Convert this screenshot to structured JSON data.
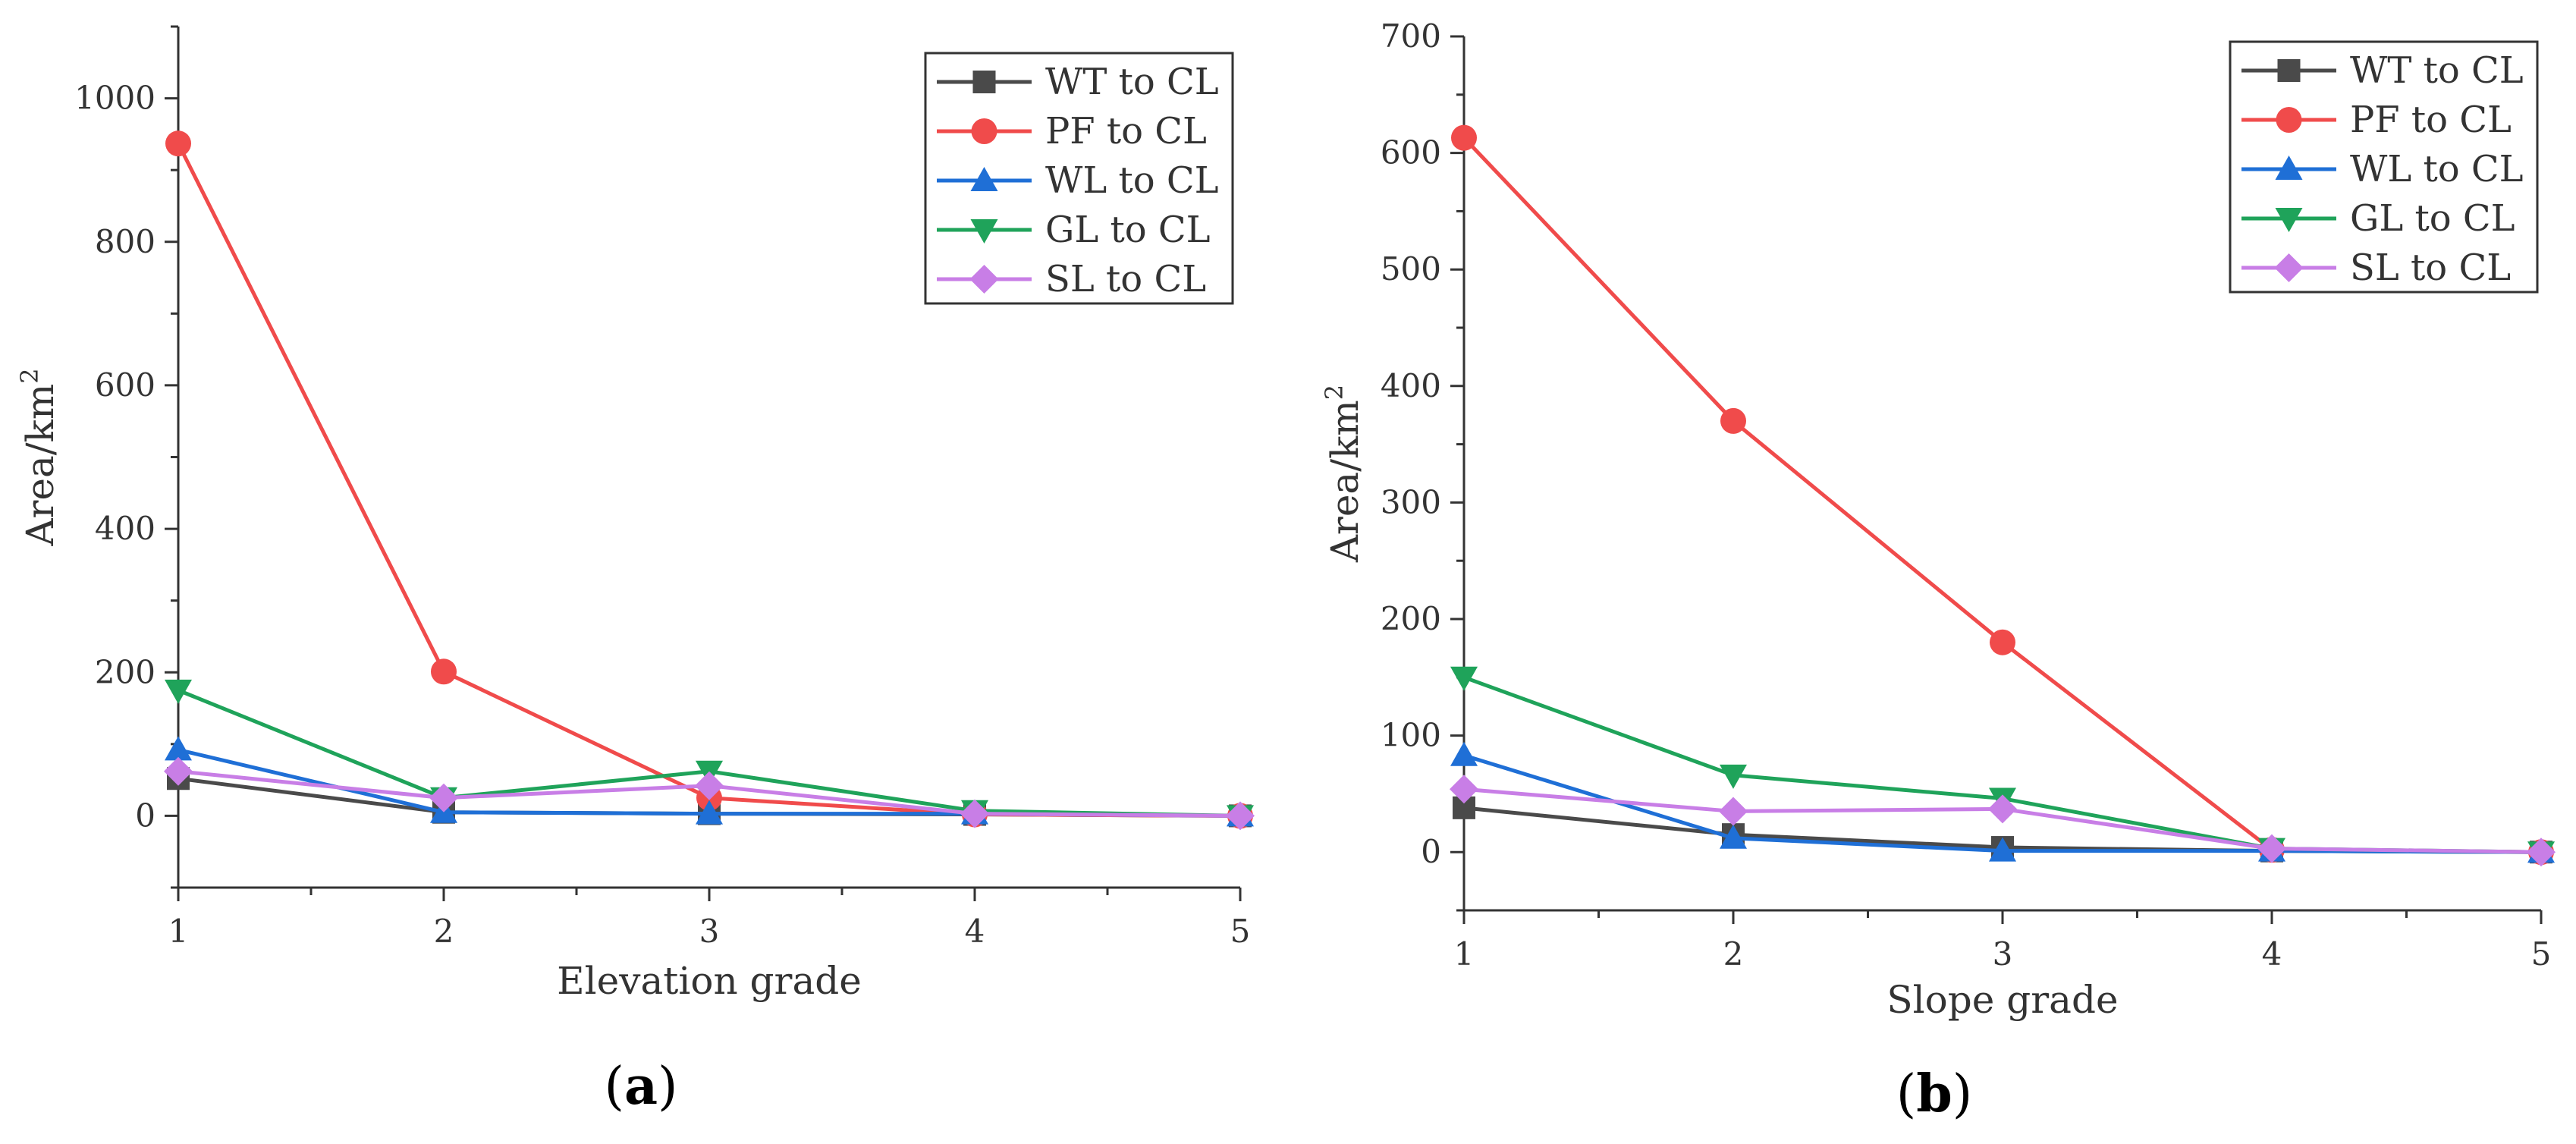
{
  "colors": {
    "WT to CL": "#4a4a4a",
    "PF to CL": "#f04b4b",
    "WL to CL": "#1f6fd6",
    "GL to CL": "#1fa35a",
    "SL to CL": "#c87ee6"
  },
  "chart_data": [
    {
      "type": "line",
      "panel_label": "a",
      "title": "",
      "xlabel": "Elevation grade",
      "ylabel": "Area/km",
      "ylabel_sup": "2",
      "x": [
        1,
        2,
        3,
        4,
        5
      ],
      "xlim": [
        1,
        5
      ],
      "ylim": [
        -100,
        1100
      ],
      "xticks": [
        1,
        2,
        3,
        4,
        5
      ],
      "yticks": [
        0,
        200,
        400,
        600,
        800,
        1000
      ],
      "grid": false,
      "legend_position": "top-right",
      "series": [
        {
          "name": "WT to CL",
          "marker": "square",
          "values": [
            52,
            5,
            3,
            2,
            0
          ]
        },
        {
          "name": "PF to CL",
          "marker": "circle",
          "values": [
            937,
            201,
            25,
            2,
            0
          ]
        },
        {
          "name": "WL to CL",
          "marker": "triangle-up",
          "values": [
            92,
            5,
            3,
            3,
            0
          ]
        },
        {
          "name": "GL to CL",
          "marker": "triangle-down",
          "values": [
            175,
            25,
            62,
            7,
            0
          ]
        },
        {
          "name": "SL to CL",
          "marker": "diamond",
          "values": [
            62,
            25,
            42,
            3,
            0
          ]
        }
      ]
    },
    {
      "type": "line",
      "panel_label": "b",
      "title": "",
      "xlabel": "Slope grade",
      "ylabel": "Area/km",
      "ylabel_sup": "2",
      "x": [
        1,
        2,
        3,
        4,
        5
      ],
      "xlim": [
        1,
        5
      ],
      "ylim": [
        -50,
        700
      ],
      "xticks": [
        1,
        2,
        3,
        4,
        5
      ],
      "yticks": [
        0,
        100,
        200,
        300,
        400,
        500,
        600,
        700
      ],
      "grid": false,
      "legend_position": "top-right",
      "series": [
        {
          "name": "WT to CL",
          "marker": "square",
          "values": [
            38,
            15,
            4,
            1,
            0
          ]
        },
        {
          "name": "PF to CL",
          "marker": "circle",
          "values": [
            613,
            370,
            180,
            2,
            0
          ]
        },
        {
          "name": "WL to CL",
          "marker": "triangle-up",
          "values": [
            83,
            12,
            1,
            1,
            0
          ]
        },
        {
          "name": "GL to CL",
          "marker": "triangle-down",
          "values": [
            150,
            66,
            46,
            3,
            0
          ]
        },
        {
          "name": "SL to CL",
          "marker": "diamond",
          "values": [
            54,
            35,
            37,
            3,
            0
          ]
        }
      ]
    }
  ]
}
